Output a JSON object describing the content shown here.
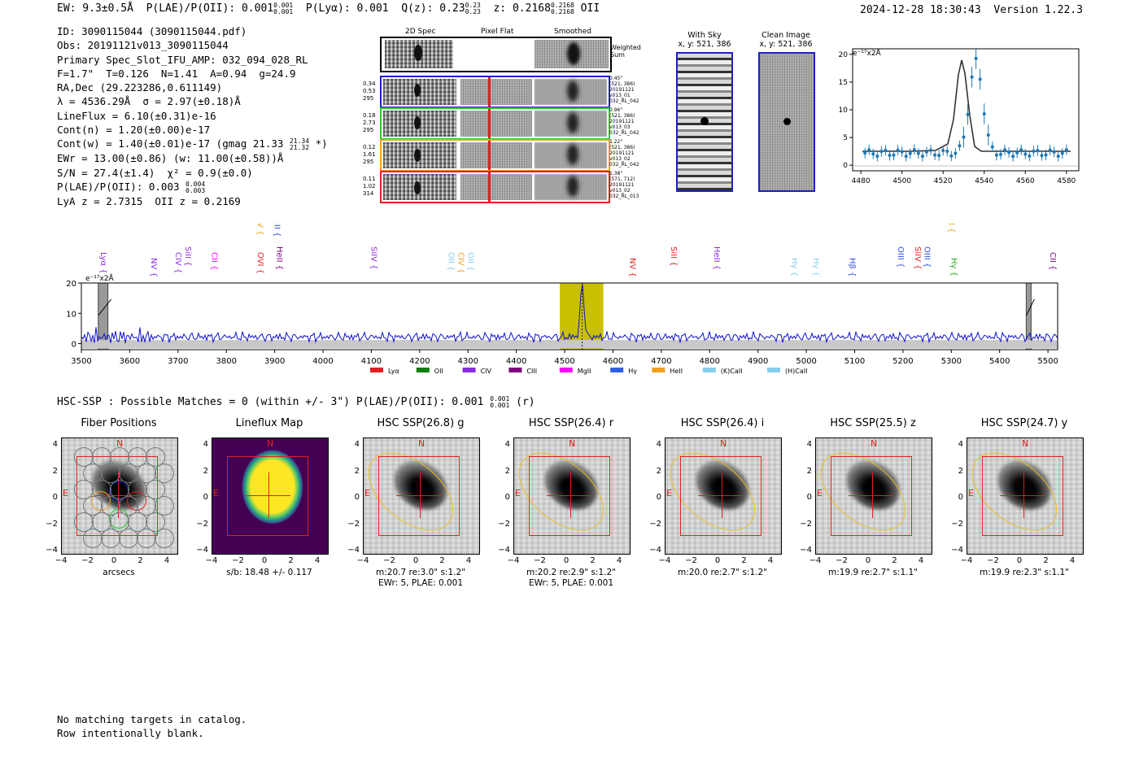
{
  "header": {
    "ew": "EW: 9.3±0.5Å",
    "plae": "P(LAE)/P(OII): 0.001",
    "plae_hi": "0.001",
    "plae_lo": "0.001",
    "plya": "P(Lyα): 0.001",
    "qz": "Q(z): 0.23",
    "qz_hi": "0.23",
    "qz_lo": "0.23",
    "z": "z: 0.2168",
    "z_hi": "0.2168",
    "z_lo": "0.2168",
    "z_line": "OII",
    "datetime": "2024-12-28 18:30:43",
    "version": "Version 1.22.3"
  },
  "info": {
    "l1": "ID: 3090115044 (3090115044.pdf)",
    "l2": "Obs: 20191121v013_3090115044",
    "l3": "Primary Spec_Slot_IFU_AMP: 032_094_028_RL",
    "l4": "F=1.7\"  T=0.126  N=1.41  A=0.94  g=24.9",
    "l5": "RA,Dec (29.223286,0.611149)",
    "l6": "λ = 4536.29Å  σ = 2.97(±0.18)Å",
    "l7": "LineFlux = 6.10(±0.31)e-16",
    "l8": "Cont(n) = 1.20(±0.00)e-17",
    "l9a": "Cont(w) = 1.40(±0.01)e-17 (gmag 21.33",
    "l9_hi": "21.34",
    "l9_lo": "21.32",
    "l9b": " *)",
    "l10": "EWr = 13.00(±0.86) (w: 11.00(±0.58))Å",
    "l11": "S/N = 27.4(±1.4)  χ² = 0.9(±0.0)",
    "l12a": "P(LAE)/P(OII): 0.003",
    "l12_hi": "0.004",
    "l12_lo": "0.003",
    "l13": "LyA z = 2.7315  OII z = 0.2169"
  },
  "cutouts": {
    "col1": "2D Spec",
    "col2": "Pixel Flat",
    "col3": "Smoothed",
    "weighted": "Weighted Sum",
    "rows": [
      {
        "v1": "0.34",
        "v2": "0.53",
        "v3": "295",
        "r1": "0.45\"",
        "r2": "(521, 386)",
        "r3": "20191121",
        "r4": "v013_01",
        "r5": "032_RL_042",
        "color": "#1f1fc8"
      },
      {
        "v1": "0.18",
        "v2": "2.73",
        "v3": "295",
        "r1": "0.96\"",
        "r2": "(521, 386)",
        "r3": "20191121",
        "r4": "v013_03",
        "r5": "032_RL_042",
        "color": "#22cc22"
      },
      {
        "v1": "0.12",
        "v2": "1.61",
        "v3": "295",
        "r1": "1.22\"",
        "r2": "(521, 386)",
        "r3": "20191121",
        "r4": "v013_02",
        "r5": "032_RL_042",
        "color": "#f0a020"
      },
      {
        "v1": "0.11",
        "v2": "1.02",
        "v3": "314",
        "r1": "1.38\"",
        "r2": "(571, 712)",
        "r3": "20191121",
        "r4": "v013_02",
        "r5": "032_RL_013",
        "color": "#e02020"
      }
    ]
  },
  "sky": {
    "with_sky": "With Sky",
    "with_sky_xy": "x, y: 521, 386",
    "clean": "Clean Image",
    "clean_xy": "x, y: 521, 386"
  },
  "fit_chart": {
    "unit": "e⁻¹⁷x2Å",
    "xticks": [
      "4480",
      "4500",
      "4520",
      "4540",
      "4560",
      "4580"
    ],
    "yticks": [
      "20",
      "15",
      "10",
      "5",
      "0"
    ]
  },
  "chart_data": {
    "type": "line",
    "title": "",
    "ylabel": "e⁻¹⁷x2Å",
    "xlim": [
      3500,
      5520
    ],
    "ylim": [
      -2,
      20
    ],
    "xticks": [
      3500,
      3600,
      3700,
      3800,
      3900,
      4000,
      4100,
      4200,
      4300,
      4400,
      4500,
      4600,
      4700,
      4800,
      4900,
      5000,
      5100,
      5200,
      5300,
      5400,
      5500
    ],
    "yticks": [
      0,
      10,
      20
    ],
    "emission_peak": {
      "x": 4536.3,
      "y": 17
    },
    "highlight_range": [
      4490,
      4580
    ],
    "masked_ranges": [
      [
        3535,
        3555
      ],
      [
        5455,
        5465
      ]
    ],
    "lines": [
      {
        "name": "Lyα",
        "x": 3535,
        "color": "#8a2be2",
        "row": 1
      },
      {
        "name": "NV",
        "x": 3640,
        "color": "#8a2be2",
        "row": 1
      },
      {
        "name": "CIV",
        "x": 3690,
        "color": "#8a2be2",
        "row": 1
      },
      {
        "name": "SiII",
        "x": 3710,
        "color": "#8a2be2",
        "row": 1
      },
      {
        "name": "CII",
        "x": 3765,
        "color": "#ff00ff",
        "row": 1
      },
      {
        "name": "SiIV",
        "x": 3860,
        "color": "#f0a020",
        "row": 0
      },
      {
        "name": "OII",
        "x": 3895,
        "color": "#3050e0",
        "row": 0
      },
      {
        "name": "OVI",
        "x": 3860,
        "color": "#e02020",
        "row": 1
      },
      {
        "name": "HeII",
        "x": 3900,
        "color": "#800080",
        "row": 1
      },
      {
        "name": "SiIV",
        "x": 4095,
        "color": "#8a2be2",
        "row": 1
      },
      {
        "name": "OII",
        "x": 4255,
        "color": "#87ceeb",
        "row": 1
      },
      {
        "name": "CIV",
        "x": 4275,
        "color": "#f0a020",
        "row": 1
      },
      {
        "name": "OII",
        "x": 4295,
        "color": "#87ceeb",
        "row": 1
      },
      {
        "name": "NV",
        "x": 4630,
        "color": "#e02020",
        "row": 1
      },
      {
        "name": "SiII",
        "x": 4715,
        "color": "#e02020",
        "row": 1
      },
      {
        "name": "HeII",
        "x": 4805,
        "color": "#8a2be2",
        "row": 1
      },
      {
        "name": "Hγ",
        "x": 4965,
        "color": "#87ceeb",
        "row": 1
      },
      {
        "name": "Hγ",
        "x": 5010,
        "color": "#87ceeb",
        "row": 1
      },
      {
        "name": "Hβ",
        "x": 5085,
        "color": "#3050e0",
        "row": 1
      },
      {
        "name": "OIII",
        "x": 5185,
        "color": "#3050e0",
        "row": 1
      },
      {
        "name": "SiIV",
        "x": 5220,
        "color": "#e02020",
        "row": 1
      },
      {
        "name": "OIII",
        "x": 5240,
        "color": "#3050e0",
        "row": 1
      },
      {
        "name": "CIII",
        "x": 5290,
        "color": "#f0a020",
        "row": 0
      },
      {
        "name": "Hγ",
        "x": 5295,
        "color": "#22aa22",
        "row": 1
      },
      {
        "name": "CII",
        "x": 5500,
        "color": "#800080",
        "row": 1
      }
    ],
    "legend": [
      {
        "name": "Lyα",
        "color": "#e02020"
      },
      {
        "name": "OII",
        "color": "#108010"
      },
      {
        "name": "CIV",
        "color": "#8a2be2"
      },
      {
        "name": "CIII",
        "color": "#800080"
      },
      {
        "name": "MgII",
        "color": "#ff00ff"
      },
      {
        "name": "Hγ",
        "color": "#3060e0"
      },
      {
        "name": "HeII",
        "color": "#f0a020"
      },
      {
        "name": "(K)CaII",
        "color": "#87ceeb"
      },
      {
        "name": "(H)CaII",
        "color": "#87ceeb"
      }
    ]
  },
  "hsc": {
    "summary_a": "HSC-SSP : Possible Matches = 0 (within +/- 3\")  P(LAE)/P(OII): 0.001",
    "summary_hi": "0.001",
    "summary_lo": "0.001",
    "summary_b": " (r)",
    "panels": [
      {
        "title": "Fiber Positions",
        "cap1": "arcsecs",
        "cap2": ""
      },
      {
        "title": "Lineflux Map",
        "cap1": "s/b: 18.48 +/- 0.117",
        "cap2": ""
      },
      {
        "title": "HSC SSP(26.8) g",
        "cap1": "m:20.7  re:3.0\"  s:1.2\"",
        "cap2": "EWr: 5, PLAE: 0.001"
      },
      {
        "title": "HSC SSP(26.4) r",
        "cap1": "m:20.2  re:2.9\"  s:1.2\"",
        "cap2": "EWr: 5, PLAE: 0.001"
      },
      {
        "title": "HSC SSP(26.4) i",
        "cap1": "m:20.0  re:2.7\"  s:1.2\"",
        "cap2": ""
      },
      {
        "title": "HSC SSP(25.5) z",
        "cap1": "m:19.9  re:2.7\"  s:1.1\"",
        "cap2": ""
      },
      {
        "title": "HSC SSP(24.7) y",
        "cap1": "m:19.9  re:2.3\"  s:1.1\"",
        "cap2": ""
      }
    ],
    "yticks": [
      "4",
      "2",
      "0",
      "−2",
      "−4"
    ],
    "xticks": [
      "−4",
      "−2",
      "0",
      "2",
      "4"
    ],
    "north": "N",
    "east": "E"
  },
  "footer": {
    "l1": "No matching targets in catalog.",
    "l2": "Row intentionally blank."
  }
}
